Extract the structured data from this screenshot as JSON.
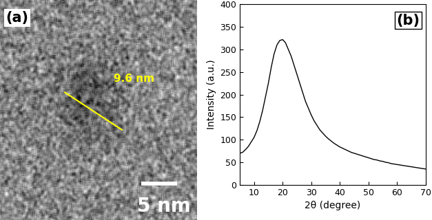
{
  "chart_data": [
    {
      "type": "image",
      "panel_label": "(a)",
      "annotations": [
        "9.6 nm"
      ],
      "scale_bar": "5 nm"
    },
    {
      "type": "line",
      "panel_label": "(b)",
      "x_label": "2θ (degree)",
      "y_label": "Intensity (a.u.)",
      "x": [
        5,
        6,
        7,
        8,
        9,
        10,
        11,
        12,
        13,
        14,
        15,
        16,
        17,
        18,
        19,
        20,
        21,
        22,
        23,
        24,
        25,
        26,
        27,
        28,
        29,
        30,
        31,
        32,
        33,
        34,
        35,
        36,
        37,
        38,
        39,
        40,
        41,
        42,
        43,
        44,
        45,
        46,
        47,
        48,
        49,
        50,
        51,
        52,
        53,
        54,
        55,
        56,
        57,
        58,
        59,
        60,
        61,
        62,
        63,
        64,
        65,
        66,
        67,
        68,
        69,
        70
      ],
      "values": [
        70,
        72,
        78,
        85,
        95,
        105,
        120,
        140,
        165,
        195,
        225,
        260,
        290,
        310,
        320,
        322,
        315,
        300,
        285,
        265,
        245,
        225,
        205,
        185,
        170,
        155,
        142,
        132,
        122,
        115,
        108,
        102,
        97,
        92,
        88,
        84,
        81,
        78,
        75,
        72,
        70,
        68,
        66,
        64,
        62,
        60,
        58,
        56,
        55,
        53,
        52,
        50,
        49,
        47,
        46,
        45,
        44,
        43,
        42,
        41,
        40,
        39,
        38,
        37,
        36,
        35
      ],
      "color": "#000000",
      "xlim": [
        5,
        70
      ],
      "xticks": [
        10,
        20,
        30,
        40,
        50,
        60,
        70
      ],
      "ylim": [
        0,
        400
      ],
      "yticks": [
        0,
        50,
        100,
        150,
        200,
        250,
        300,
        350,
        400
      ]
    }
  ]
}
